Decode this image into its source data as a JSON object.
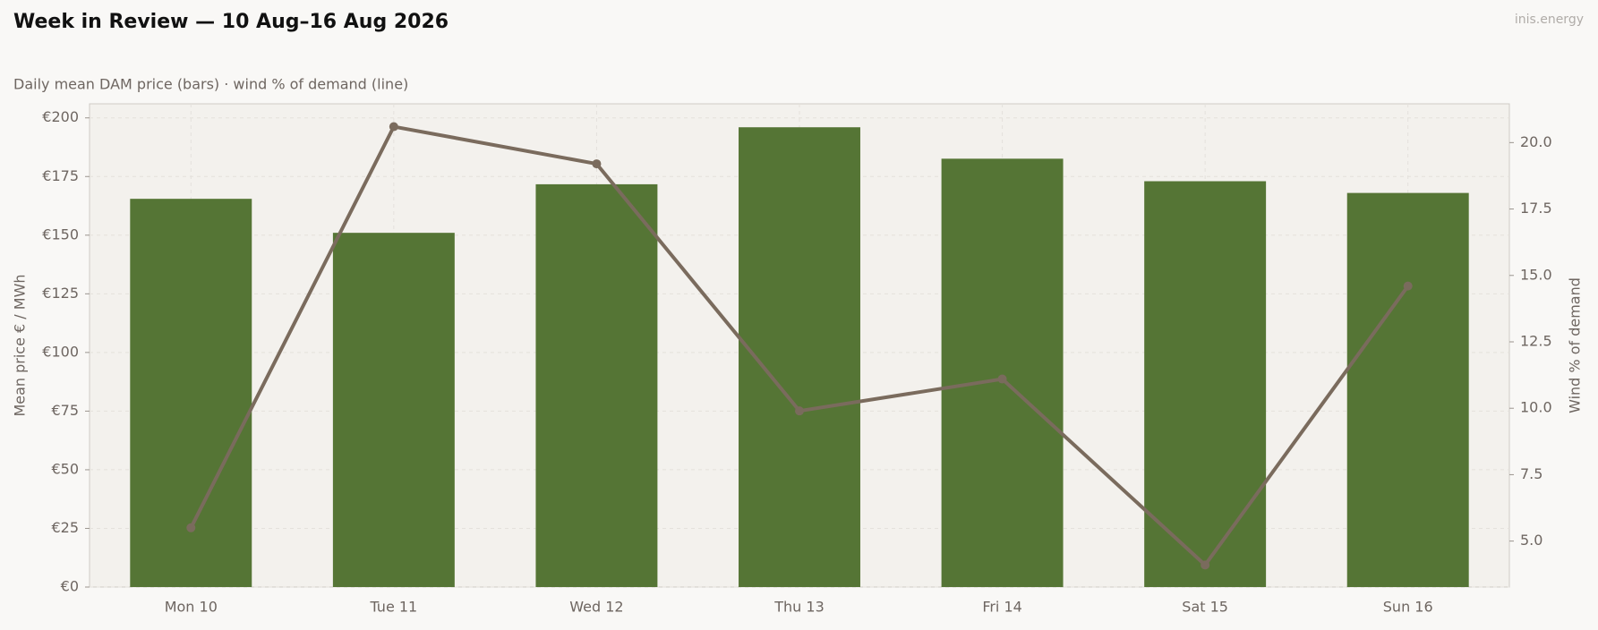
{
  "chart_data": {
    "type": "bar",
    "title": "Week in Review — 10 Aug–16 Aug 2026",
    "subtitle": "Daily mean DAM price (bars)  ·  wind % of demand (line)",
    "watermark": "inis.energy",
    "ylabel": "Mean price € / MWh",
    "y2label": "Wind % of demand",
    "categories": [
      "Mon 10",
      "Tue 11",
      "Wed 12",
      "Thu 13",
      "Fri 14",
      "Sat 15",
      "Sun 16"
    ],
    "series": [
      {
        "type": "bar",
        "color": "#557535",
        "values": [
          165.5,
          151,
          171.7,
          196,
          182.6,
          173,
          168
        ]
      },
      {
        "type": "line",
        "color": "#7a6b5d",
        "axis": "y2",
        "values": [
          5.5,
          20.6,
          19.2,
          9.9,
          11.1,
          4.1,
          14.6
        ]
      }
    ],
    "ylim": [
      0,
      206
    ],
    "yticks": [
      {
        "value": 0,
        "label": "€0"
      },
      {
        "value": 25,
        "label": "€25"
      },
      {
        "value": 50,
        "label": "€50"
      },
      {
        "value": 75,
        "label": "€75"
      },
      {
        "value": 100,
        "label": "€100"
      },
      {
        "value": 125,
        "label": "€125"
      },
      {
        "value": 150,
        "label": "€150"
      },
      {
        "value": 175,
        "label": "€175"
      },
      {
        "value": 200,
        "label": "€200"
      }
    ],
    "y2lim": [
      3.27,
      21.46
    ],
    "y2ticks": [
      {
        "value": 5,
        "label": "5.0"
      },
      {
        "value": 7.5,
        "label": "7.5"
      },
      {
        "value": 10,
        "label": "10.0"
      },
      {
        "value": 12.5,
        "label": "12.5"
      },
      {
        "value": 15,
        "label": "15.0"
      },
      {
        "value": 17.5,
        "label": "17.5"
      },
      {
        "value": 20,
        "label": "20.0"
      }
    ],
    "grid": true
  }
}
